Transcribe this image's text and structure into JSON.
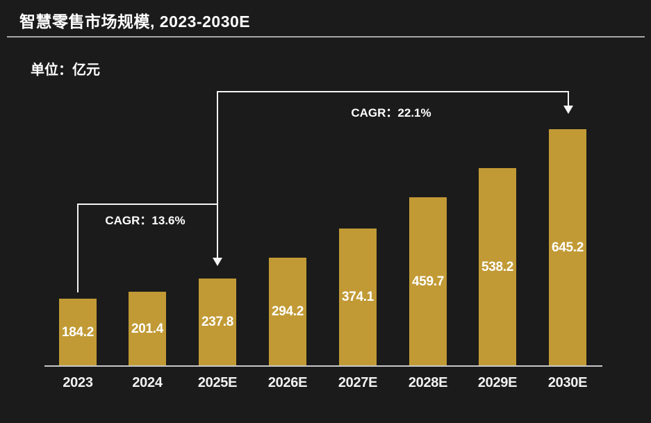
{
  "header": {
    "title": "智慧零售市场规模, 2023-2030E",
    "unit_label": "单位：亿元"
  },
  "colors": {
    "background": "#1b1b1b",
    "bar": "#c19a35",
    "value_text": "#ffffff",
    "axis_line": "#c9c9c9",
    "title_divider": "#a8a8a8",
    "annotation_line": "#f5f5f5"
  },
  "chart_data": {
    "type": "bar",
    "title": "智慧零售市场规模, 2023-2030E",
    "unit": "亿元",
    "categories": [
      "2023",
      "2024",
      "2025E",
      "2026E",
      "2027E",
      "2028E",
      "2029E",
      "2030E"
    ],
    "values": [
      184.2,
      201.4,
      237.8,
      294.2,
      374.1,
      459.7,
      538.2,
      645.2
    ],
    "xlabel": "",
    "ylabel": "亿元",
    "ylim": [
      0,
      700
    ],
    "grid": false,
    "legend": "none",
    "value_label_position": "inside-center",
    "bar_color": "#c19a35",
    "annotations": [
      {
        "label": "CAGR：13.6%",
        "from": "2023",
        "to": "2025E",
        "value_pct": 13.6
      },
      {
        "label": "CAGR：22.1%",
        "from": "2025E",
        "to": "2030E",
        "value_pct": 22.1
      }
    ]
  }
}
